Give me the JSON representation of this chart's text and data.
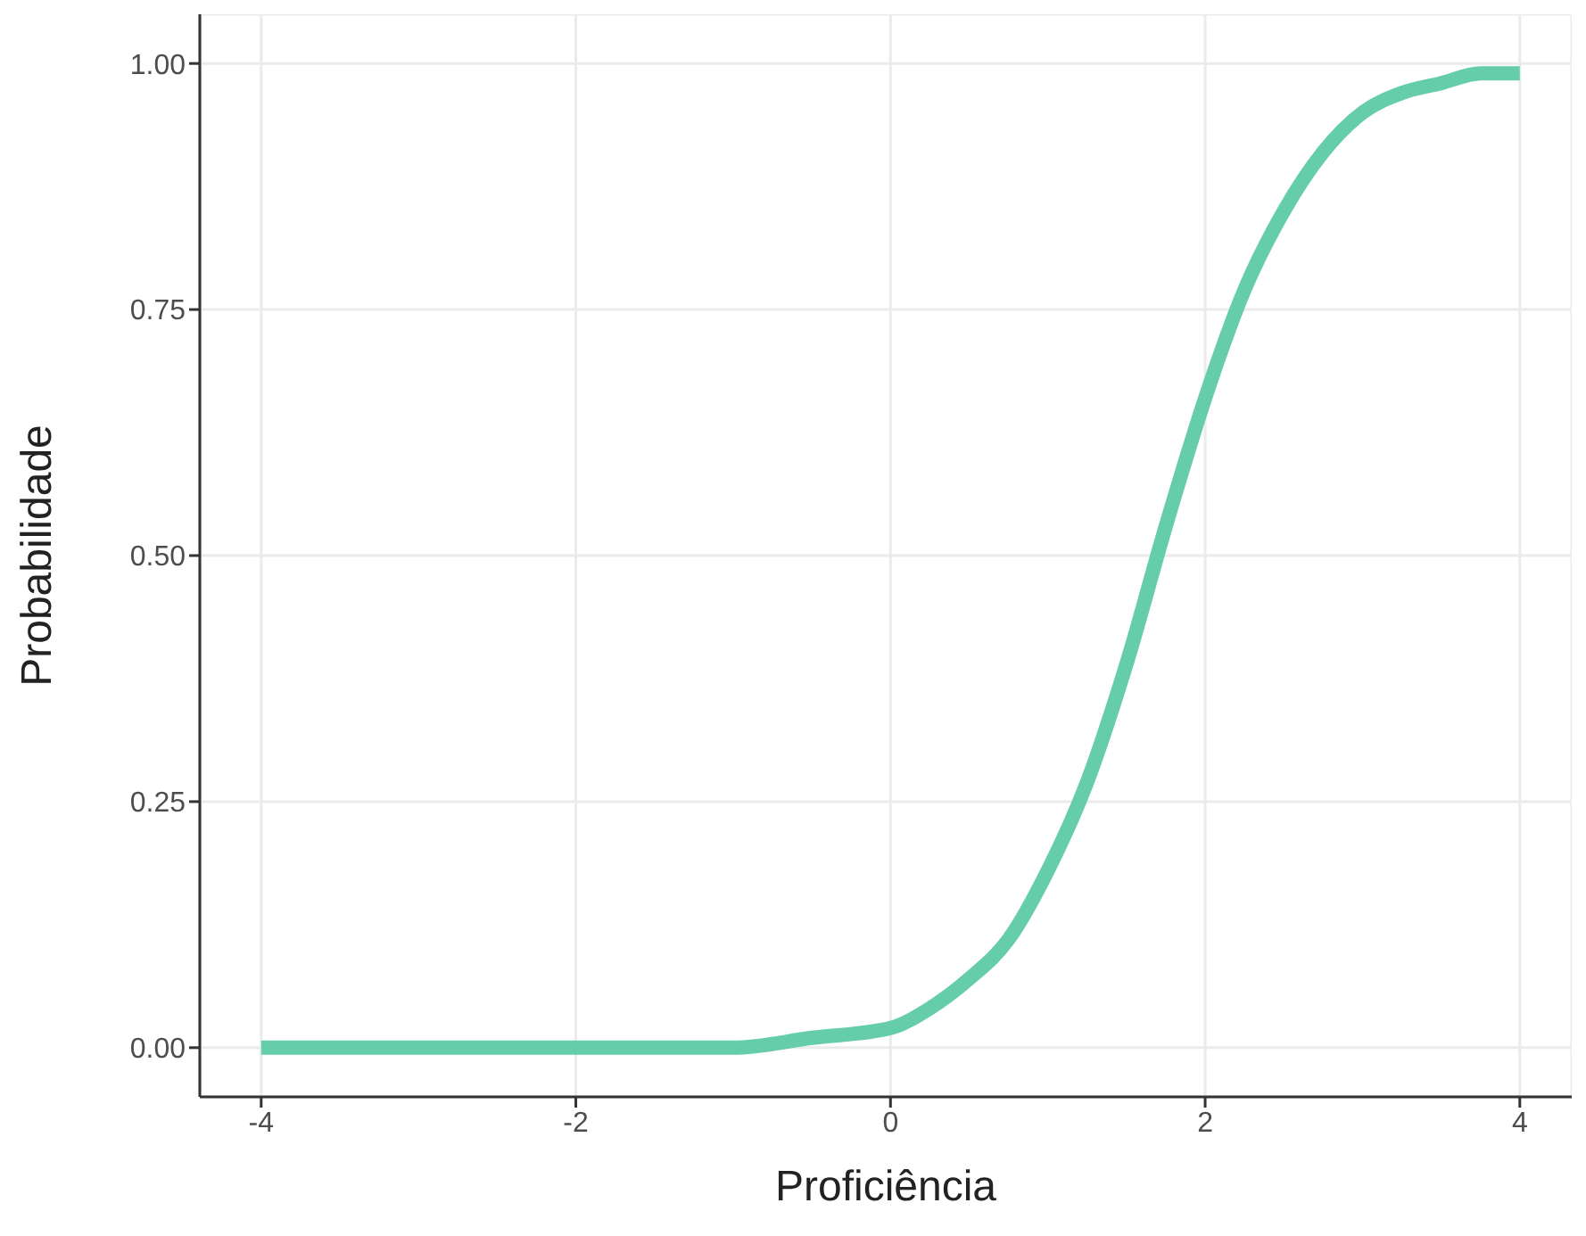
{
  "chart_data": {
    "type": "line",
    "xlabel": "Proficiência",
    "ylabel": "Probabilidade",
    "x": [
      -4,
      -3.5,
      -3,
      -2.5,
      -2,
      -1.5,
      -1,
      -0.5,
      0,
      0.25,
      0.5,
      0.75,
      1,
      1.25,
      1.5,
      1.75,
      2,
      2.25,
      2.5,
      2.75,
      3,
      3.25,
      3.5,
      3.75,
      4
    ],
    "series": [
      {
        "color": "#66cdaa",
        "values": [
          0,
          0,
          0,
          0,
          0,
          0,
          0,
          0.01,
          0.02,
          0.04,
          0.07,
          0.11,
          0.18,
          0.27,
          0.39,
          0.53,
          0.66,
          0.77,
          0.85,
          0.91,
          0.95,
          0.97,
          0.98,
          0.99,
          0.99
        ]
      }
    ],
    "xlim": [
      -4.39,
      4.33
    ],
    "xticks": [
      -4,
      -2,
      0,
      2,
      4
    ],
    "ylim": [
      -0.05,
      1.05
    ],
    "yticks": [
      {
        "value": 0,
        "label": "0.00"
      },
      {
        "value": 0.25,
        "label": "0.25"
      },
      {
        "value": 0.5,
        "label": "0.50"
      },
      {
        "value": 0.75,
        "label": "0.75"
      },
      {
        "value": 1,
        "label": "1.00"
      }
    ],
    "grid": true,
    "marker": "none",
    "line_style": "solid",
    "legend": false
  }
}
